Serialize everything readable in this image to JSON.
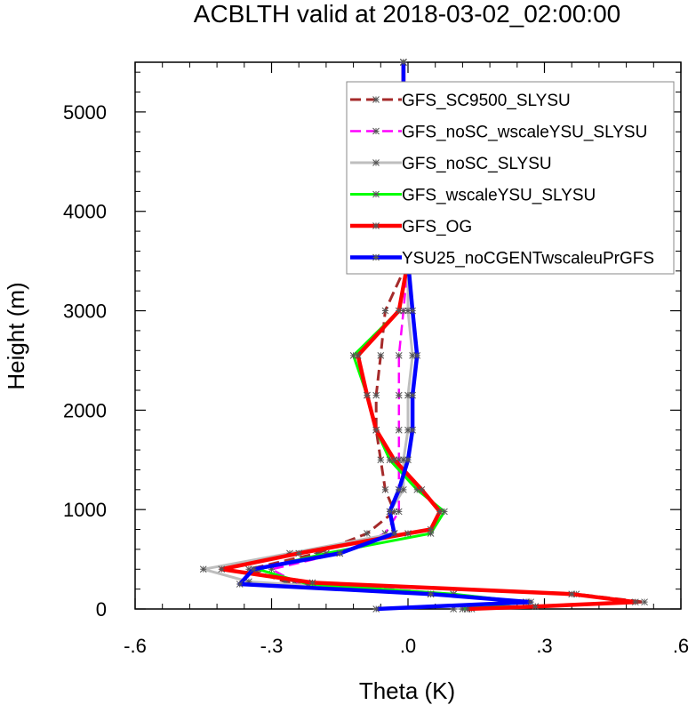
{
  "chart_data": {
    "type": "line",
    "title": "ACBLTH valid at 2018-03-02_02:00:00",
    "xlabel": "Theta (K)",
    "ylabel": "Height (m)",
    "xlim": [
      -0.6,
      0.6
    ],
    "ylim": [
      0,
      5500
    ],
    "x_ticks": [
      -0.6,
      -0.3,
      0.0,
      0.3,
      0.6
    ],
    "x_tick_labels": [
      "-.6",
      "-.3",
      ".0",
      ".3",
      ".6"
    ],
    "y_ticks": [
      0,
      1000,
      2000,
      3000,
      4000,
      5000
    ],
    "y_tick_labels": [
      "0",
      "1000",
      "2000",
      "3000",
      "4000",
      "5000"
    ],
    "legend_position": "top-right",
    "grid": false,
    "series": [
      {
        "name": "GFS_SC9500_SLYSU",
        "color": "#a52a2a",
        "style": "dashed",
        "points": [
          [
            0.14,
            0
          ],
          [
            0.28,
            25
          ],
          [
            0.52,
            70
          ],
          [
            0.37,
            150
          ],
          [
            -0.27,
            275
          ],
          [
            -0.35,
            400
          ],
          [
            -0.2,
            560
          ],
          [
            -0.09,
            760
          ],
          [
            -0.03,
            980
          ],
          [
            -0.05,
            1200
          ],
          [
            -0.06,
            1500
          ],
          [
            -0.07,
            1800
          ],
          [
            -0.07,
            2150
          ],
          [
            -0.06,
            2550
          ],
          [
            -0.05,
            3000
          ],
          [
            0.0,
            3500
          ],
          [
            -0.01,
            4050
          ],
          [
            -0.01,
            4650
          ],
          [
            -0.01,
            5200
          ],
          [
            -0.01,
            5500
          ]
        ]
      },
      {
        "name": "GFS_noSC_wscaleYSU_SLYSU",
        "color": "#ff00ff",
        "style": "dashed",
        "points": [
          [
            0.13,
            0
          ],
          [
            0.26,
            70
          ],
          [
            0.1,
            150
          ],
          [
            -0.25,
            275
          ],
          [
            -0.3,
            400
          ],
          [
            -0.15,
            560
          ],
          [
            -0.05,
            760
          ],
          [
            -0.02,
            980
          ],
          [
            -0.02,
            1200
          ],
          [
            -0.02,
            1500
          ],
          [
            -0.02,
            1800
          ],
          [
            -0.02,
            2150
          ],
          [
            -0.02,
            2550
          ],
          [
            -0.01,
            3000
          ],
          [
            0.0,
            3500
          ],
          [
            -0.01,
            4050
          ],
          [
            -0.01,
            4650
          ],
          [
            -0.01,
            5200
          ],
          [
            -0.01,
            5500
          ]
        ]
      },
      {
        "name": "GFS_noSC_SLYSU",
        "color": "#bebebe",
        "style": "solid",
        "points": [
          [
            0.1,
            0
          ],
          [
            0.26,
            70
          ],
          [
            0.05,
            150
          ],
          [
            -0.35,
            275
          ],
          [
            -0.45,
            400
          ],
          [
            -0.26,
            560
          ],
          [
            -0.03,
            760
          ],
          [
            -0.04,
            980
          ],
          [
            -0.01,
            1200
          ],
          [
            -0.01,
            1500
          ],
          [
            0.0,
            1800
          ],
          [
            0.0,
            2150
          ],
          [
            0.01,
            2550
          ],
          [
            0.0,
            3000
          ],
          [
            0.0,
            3500
          ],
          [
            -0.01,
            4050
          ],
          [
            -0.01,
            4650
          ],
          [
            -0.01,
            5200
          ],
          [
            -0.01,
            5500
          ]
        ]
      },
      {
        "name": "GFS_wscaleYSU_SLYSU",
        "color": "#00ff00",
        "style": "solid",
        "points": [
          [
            0.12,
            0
          ],
          [
            0.26,
            70
          ],
          [
            0.1,
            150
          ],
          [
            -0.22,
            250
          ],
          [
            -0.33,
            400
          ],
          [
            -0.18,
            560
          ],
          [
            0.05,
            760
          ],
          [
            0.08,
            980
          ],
          [
            0.02,
            1200
          ],
          [
            -0.04,
            1500
          ],
          [
            -0.07,
            1800
          ],
          [
            -0.09,
            2150
          ],
          [
            -0.12,
            2550
          ],
          [
            -0.02,
            3000
          ],
          [
            0.0,
            3500
          ],
          [
            -0.01,
            4050
          ],
          [
            -0.01,
            4650
          ],
          [
            -0.01,
            5200
          ],
          [
            -0.01,
            5500
          ]
        ]
      },
      {
        "name": "GFS_OG",
        "color": "#ff0000",
        "style": "solid",
        "points": [
          [
            0.13,
            0
          ],
          [
            0.28,
            25
          ],
          [
            0.5,
            70
          ],
          [
            0.36,
            150
          ],
          [
            -0.21,
            265
          ],
          [
            -0.41,
            400
          ],
          [
            -0.24,
            560
          ],
          [
            0.0,
            760
          ],
          [
            0.05,
            800
          ],
          [
            0.07,
            980
          ],
          [
            0.03,
            1200
          ],
          [
            -0.03,
            1500
          ],
          [
            -0.07,
            1800
          ],
          [
            -0.09,
            2150
          ],
          [
            -0.11,
            2550
          ],
          [
            -0.02,
            3000
          ],
          [
            0.0,
            3500
          ],
          [
            -0.01,
            4050
          ],
          [
            -0.01,
            4650
          ],
          [
            -0.01,
            5200
          ],
          [
            -0.01,
            5500
          ]
        ]
      },
      {
        "name": "YSU25_noCGENTwscaleuPrGFS",
        "color": "#0000ff",
        "style": "solid",
        "points": [
          [
            -0.07,
            0
          ],
          [
            0.27,
            70
          ],
          [
            0.05,
            150
          ],
          [
            -0.37,
            250
          ],
          [
            -0.34,
            400
          ],
          [
            -0.15,
            560
          ],
          [
            -0.03,
            760
          ],
          [
            -0.04,
            980
          ],
          [
            -0.02,
            1200
          ],
          [
            0.0,
            1500
          ],
          [
            0.01,
            1800
          ],
          [
            0.01,
            2150
          ],
          [
            0.02,
            2550
          ],
          [
            0.01,
            3000
          ],
          [
            0.0,
            3500
          ],
          [
            -0.03,
            4050
          ],
          [
            -0.02,
            4650
          ],
          [
            -0.01,
            5200
          ],
          [
            -0.01,
            5500
          ]
        ]
      }
    ]
  }
}
